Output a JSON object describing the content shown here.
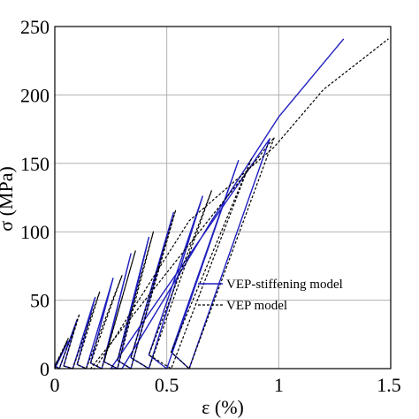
{
  "chart_data": {
    "type": "line",
    "title": "",
    "xlabel": "ε (%)",
    "ylabel": "σ (MPa)",
    "xlim": [
      0,
      1.5
    ],
    "ylim": [
      0,
      250
    ],
    "xticks": [
      0,
      0.5,
      1,
      1.5
    ],
    "xtick_labels": [
      "0",
      "0.5",
      "1",
      "1.5"
    ],
    "yticks": [
      0,
      50,
      100,
      150,
      200,
      250
    ],
    "ytick_labels": [
      "0",
      "50",
      "100",
      "150",
      "200",
      "250"
    ],
    "grid": true,
    "legend_position": "lower-right",
    "series": [
      {
        "name": "VEP-stiffening model",
        "color": "#1f1fbf",
        "style": "solid",
        "x": [
          0.0,
          0.06,
          0.0,
          0.02,
          0.1,
          0.04,
          0.08,
          0.18,
          0.1,
          0.14,
          0.26,
          0.16,
          0.21,
          0.34,
          0.22,
          0.28,
          0.42,
          0.28,
          0.34,
          0.53,
          0.34,
          0.42,
          0.66,
          0.42,
          0.5,
          0.82,
          0.52,
          0.6,
          0.96,
          0.25,
          0.3,
          0.7,
          1.0,
          1.29
        ],
        "y": [
          0,
          20,
          2,
          0,
          36,
          2,
          0,
          52,
          3,
          0,
          66,
          4,
          0,
          84,
          5,
          0,
          96,
          6,
          0,
          114,
          8,
          0,
          126,
          10,
          0,
          152,
          12,
          0,
          168,
          0,
          0,
          108,
          184,
          241
        ]
      },
      {
        "name": "VEP model",
        "color": "#000000",
        "style": "dashed",
        "x": [
          0.0,
          0.06,
          0.0,
          0.02,
          0.11,
          0.04,
          0.08,
          0.2,
          0.1,
          0.14,
          0.3,
          0.16,
          0.21,
          0.36,
          0.22,
          0.28,
          0.44,
          0.28,
          0.34,
          0.54,
          0.34,
          0.42,
          0.7,
          0.42,
          0.52,
          0.88,
          0.52,
          0.6,
          0.98,
          0.16,
          0.18,
          0.6,
          0.98,
          1.2,
          1.49
        ],
        "y": [
          0,
          22,
          2,
          0,
          40,
          2,
          0,
          56,
          3,
          0,
          68,
          4,
          0,
          86,
          5,
          0,
          100,
          6,
          0,
          116,
          8,
          0,
          130,
          10,
          0,
          154,
          12,
          0,
          169,
          0,
          0,
          108,
          162,
          204,
          241
        ]
      }
    ]
  }
}
